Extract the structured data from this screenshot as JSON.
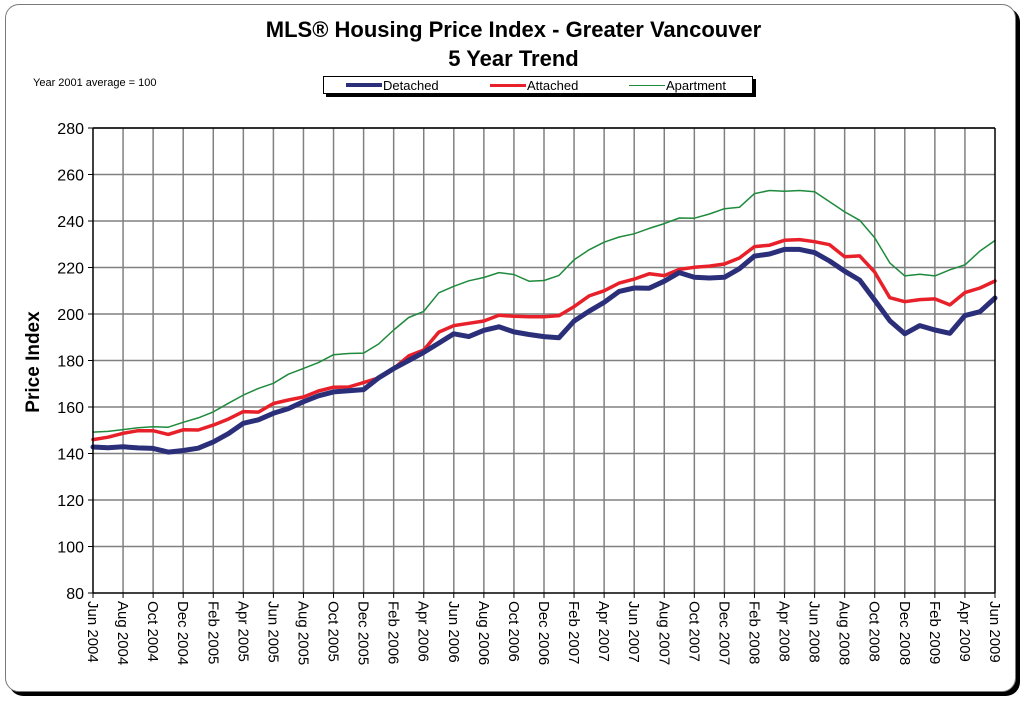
{
  "chart_data": {
    "type": "line",
    "title": "MLS®  Housing Price Index - Greater Vancouver",
    "subtitle": "5 Year Trend",
    "annotation": "Year 2001 average = 100",
    "xlabel": "",
    "ylabel": "Price Index",
    "ylim": [
      80,
      280
    ],
    "yticks": [
      80,
      100,
      120,
      140,
      160,
      180,
      200,
      220,
      240,
      260,
      280
    ],
    "grid": true,
    "legend_position": "top-center",
    "x_tick_labels": [
      "Jun 2004",
      "Aug 2004",
      "Oct 2004",
      "Dec 2004",
      "Feb 2005",
      "Apr 2005",
      "Jun 2005",
      "Aug 2005",
      "Oct 2005",
      "Dec 2005",
      "Feb 2006",
      "Apr 2006",
      "Jun 2006",
      "Aug 2006",
      "Oct 2006",
      "Dec 2006",
      "Feb 2007",
      "Apr 2007",
      "Jun 2007",
      "Aug 2007",
      "Oct 2007",
      "Dec 2007",
      "Feb 2008",
      "Apr 2008",
      "Jun 2008",
      "Aug 2008",
      "Oct 2008",
      "Dec 2008",
      "Feb 2009",
      "Apr 2009",
      "Jun 2009"
    ],
    "x_period": "monthly, Jun 2004 to Jun 2009 (61 points)",
    "series": [
      {
        "name": "Detached",
        "color": "#2b2f7a",
        "values": [
          142.8,
          142.5,
          142.9,
          142.4,
          142.2,
          140.6,
          141.3,
          142.3,
          145.0,
          148.5,
          153.0,
          154.5,
          157.3,
          159.3,
          162.3,
          164.8,
          166.5,
          167.0,
          167.5,
          172.5,
          176.5,
          180.0,
          183.5,
          187.5,
          191.5,
          190.3,
          193.0,
          194.5,
          192.3,
          191.2,
          190.3,
          189.8,
          197.0,
          201.2,
          205.0,
          209.7,
          211.2,
          211.1,
          214.1,
          217.8,
          215.8,
          215.5,
          215.8,
          219.5,
          224.9,
          225.8,
          227.8,
          227.8,
          226.4,
          222.8,
          218.4,
          214.6,
          206.0,
          197.1,
          191.5,
          195.0,
          193.1,
          191.7,
          199.3,
          201.0,
          206.9
        ]
      },
      {
        "name": "Attached",
        "color": "#e8202a",
        "values": [
          146.0,
          147.0,
          148.7,
          149.8,
          149.8,
          148.2,
          150.2,
          150.1,
          152.2,
          154.8,
          158.0,
          157.8,
          161.5,
          163.0,
          164.3,
          166.9,
          168.5,
          168.6,
          170.5,
          172.5,
          176.5,
          182.0,
          184.5,
          192.2,
          195.0,
          196.0,
          197.0,
          199.5,
          199.0,
          198.8,
          198.8,
          199.3,
          203.2,
          207.8,
          210.0,
          213.3,
          215.0,
          217.3,
          216.5,
          219.2,
          220.1,
          220.6,
          221.5,
          224.1,
          229.0,
          229.6,
          231.7,
          232.0,
          231.1,
          229.8,
          224.6,
          225.0,
          218.0,
          207.0,
          205.3,
          206.2,
          206.5,
          203.9,
          209.2,
          211.2,
          214.2
        ]
      },
      {
        "name": "Apartment",
        "color": "#1e8a3c",
        "values": [
          149.2,
          149.5,
          150.3,
          151.1,
          151.5,
          151.3,
          153.4,
          155.3,
          157.9,
          161.6,
          165.1,
          168.0,
          170.2,
          174.1,
          176.6,
          179.1,
          182.5,
          183.0,
          183.2,
          187.1,
          193.1,
          198.5,
          201.1,
          209.1,
          211.9,
          214.3,
          215.7,
          217.8,
          217.0,
          214.1,
          214.4,
          216.6,
          223.3,
          227.6,
          230.9,
          233.1,
          234.5,
          236.8,
          238.9,
          241.3,
          241.2,
          243.0,
          245.3,
          245.9,
          251.8,
          253.1,
          252.8,
          253.1,
          252.6,
          248.3,
          243.9,
          240.3,
          232.8,
          222.0,
          216.4,
          217.1,
          216.4,
          219.0,
          221.1,
          227.1,
          231.6
        ]
      }
    ]
  }
}
